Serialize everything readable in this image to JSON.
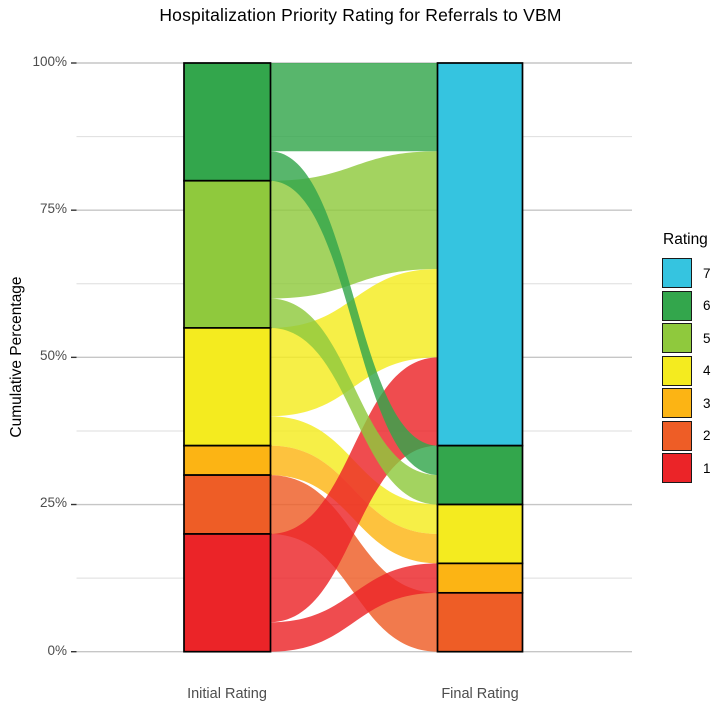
{
  "title": "Hospitalization Priority Rating for Referrals to VBM",
  "y_axis": {
    "label": "Cumulative Percentage",
    "ticks": [
      "100%",
      "75%",
      "50%",
      "25%",
      "0%"
    ]
  },
  "x_axis": {
    "categories": [
      "Initial Rating",
      "Final Rating"
    ]
  },
  "legend": {
    "title": "Rating",
    "items": [
      {
        "label": "7",
        "color": "#35c4e0"
      },
      {
        "label": "6",
        "color": "#33a64c"
      },
      {
        "label": "5",
        "color": "#8fc93d"
      },
      {
        "label": "4",
        "color": "#f4eb1f"
      },
      {
        "label": "3",
        "color": "#fcb414"
      },
      {
        "label": "2",
        "color": "#ee5d26"
      },
      {
        "label": "1",
        "color": "#eb2428"
      }
    ]
  },
  "chart_data": {
    "type": "alluvial",
    "title": "Hospitalization Priority Rating for Referrals to VBM",
    "xlabel": "",
    "ylabel": "Cumulative Percentage",
    "ylim": [
      0,
      100
    ],
    "grid": "on",
    "legend_position": "right",
    "y_major_gridlines_pct": [
      0,
      25,
      50,
      75,
      100
    ],
    "y_minor_gridlines_pct": [
      12.5,
      37.5,
      62.5,
      87.5
    ],
    "axes": [
      "Initial Rating",
      "Final Rating"
    ],
    "colors": {
      "1": "#eb2428",
      "2": "#ee5d26",
      "3": "#fcb414",
      "4": "#f4eb1f",
      "5": "#8fc93d",
      "6": "#33a64c",
      "7": "#35c4e0"
    },
    "initial_strata": [
      {
        "rating": "6",
        "from_pct": 80,
        "to_pct": 100,
        "size_pct": 20
      },
      {
        "rating": "5",
        "from_pct": 55,
        "to_pct": 80,
        "size_pct": 25
      },
      {
        "rating": "4",
        "from_pct": 35,
        "to_pct": 55,
        "size_pct": 20
      },
      {
        "rating": "3",
        "from_pct": 30,
        "to_pct": 35,
        "size_pct": 5
      },
      {
        "rating": "2",
        "from_pct": 20,
        "to_pct": 30,
        "size_pct": 10
      },
      {
        "rating": "1",
        "from_pct": 0,
        "to_pct": 20,
        "size_pct": 20
      }
    ],
    "final_strata": [
      {
        "rating": "7",
        "from_pct": 35,
        "to_pct": 100,
        "size_pct": 65
      },
      {
        "rating": "6",
        "from_pct": 25,
        "to_pct": 35,
        "size_pct": 10
      },
      {
        "rating": "4",
        "from_pct": 15,
        "to_pct": 25,
        "size_pct": 10
      },
      {
        "rating": "3",
        "from_pct": 10,
        "to_pct": 15,
        "size_pct": 5
      },
      {
        "rating": "2",
        "from_pct": 0,
        "to_pct": 10,
        "size_pct": 10
      }
    ],
    "flows": [
      {
        "from_rating": "4",
        "to_rating": "7",
        "size_pct": 15,
        "initial_span_pct": [
          40,
          55
        ],
        "final_span_pct": [
          50,
          65
        ]
      },
      {
        "from_rating": "4",
        "to_rating": "4",
        "size_pct": 5,
        "initial_span_pct": [
          35,
          40
        ],
        "final_span_pct": [
          20,
          25
        ]
      },
      {
        "from_rating": "3",
        "to_rating": "4",
        "size_pct": 5,
        "initial_span_pct": [
          30,
          35
        ],
        "final_span_pct": [
          15,
          20
        ]
      },
      {
        "from_rating": "2",
        "to_rating": "2",
        "size_pct": 10,
        "initial_span_pct": [
          20,
          30
        ],
        "final_span_pct": [
          0,
          10
        ]
      },
      {
        "from_rating": "1",
        "to_rating": "7",
        "size_pct": 15,
        "initial_span_pct": [
          5,
          20
        ],
        "final_span_pct": [
          35,
          50
        ]
      },
      {
        "from_rating": "1",
        "to_rating": "3",
        "size_pct": 5,
        "initial_span_pct": [
          0,
          5
        ],
        "final_span_pct": [
          10,
          15
        ]
      },
      {
        "from_rating": "5",
        "to_rating": "7",
        "size_pct": 20,
        "initial_span_pct": [
          60,
          80
        ],
        "final_span_pct": [
          65,
          85
        ]
      },
      {
        "from_rating": "5",
        "to_rating": "6",
        "size_pct": 5,
        "initial_span_pct": [
          55,
          60
        ],
        "final_span_pct": [
          25,
          30
        ]
      },
      {
        "from_rating": "6",
        "to_rating": "7",
        "size_pct": 15,
        "initial_span_pct": [
          85,
          100
        ],
        "final_span_pct": [
          85,
          100
        ]
      },
      {
        "from_rating": "6",
        "to_rating": "6",
        "size_pct": 5,
        "initial_span_pct": [
          80,
          85
        ],
        "final_span_pct": [
          30,
          35
        ]
      }
    ]
  }
}
